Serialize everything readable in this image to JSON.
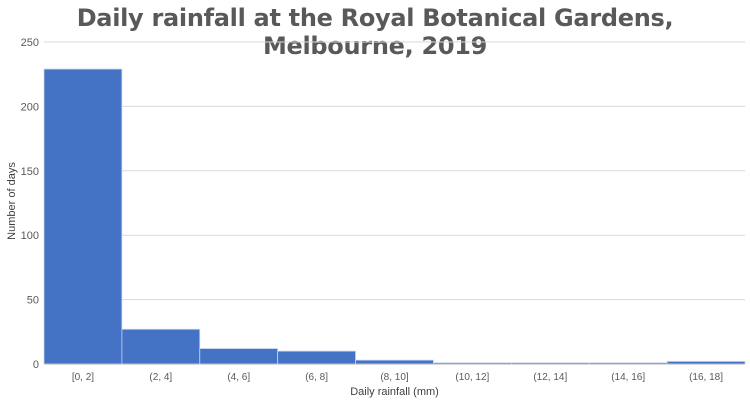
{
  "chart_data": {
    "type": "bar",
    "title": "Daily rainfall at the Royal Botanical Gardens, Melbourne, 2019",
    "xlabel": "Daily rainfall (mm)",
    "ylabel": "Number of days",
    "categories": [
      "[0, 2]",
      "(2, 4]",
      "(4, 6]",
      "(6, 8]",
      "(8, 10]",
      "(10, 12]",
      "(12, 14]",
      "(14, 16]",
      "(16, 18]"
    ],
    "values": [
      229,
      27,
      12,
      10,
      3,
      1,
      1,
      1,
      2
    ],
    "ylim": [
      0,
      250
    ],
    "yticks": [
      0,
      50,
      100,
      150,
      200,
      250
    ],
    "grid": true,
    "legend": "none",
    "bar_color": "#4472C4"
  }
}
